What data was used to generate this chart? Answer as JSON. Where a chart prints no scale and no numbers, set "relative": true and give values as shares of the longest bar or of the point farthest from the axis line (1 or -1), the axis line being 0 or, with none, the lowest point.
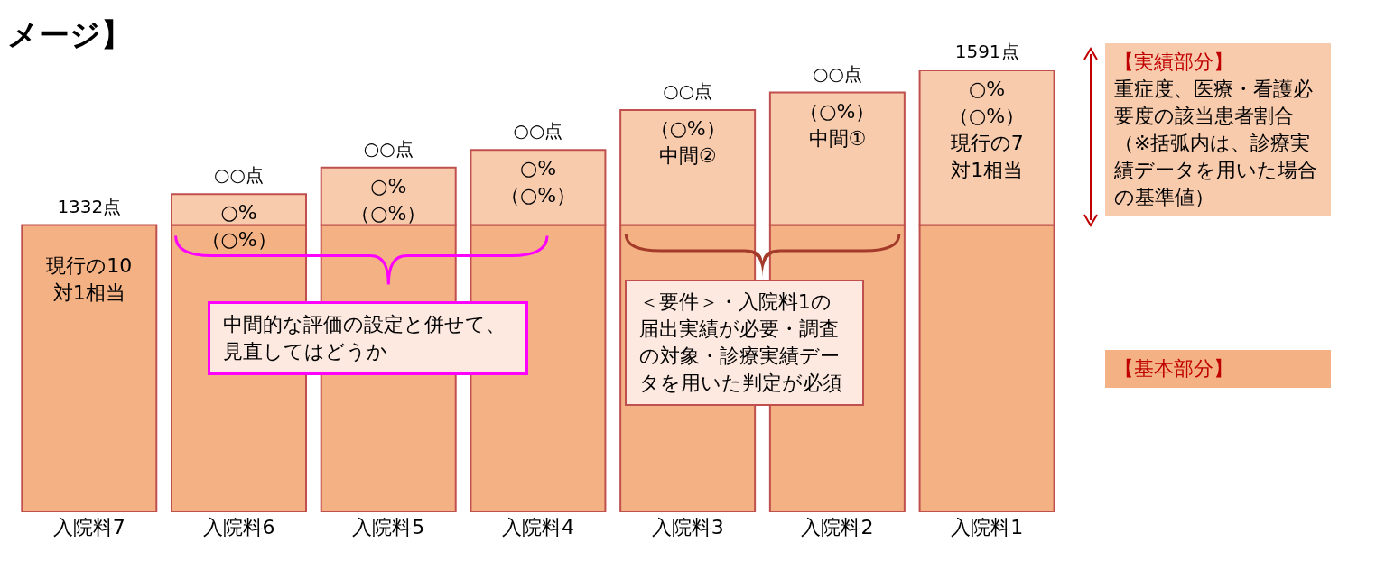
{
  "chart_data": {
    "type": "bar",
    "title": "メージ】",
    "relative": true,
    "stacked": true,
    "legend": "right",
    "categories": [
      "入院料7",
      "入院料6",
      "入院料5",
      "入院料4",
      "入院料3",
      "入院料2",
      "入院料1"
    ],
    "series": [
      {
        "name": "【基本部分】",
        "color": "#f4b183",
        "values": [
          0.65,
          0.65,
          0.65,
          0.65,
          0.65,
          0.65,
          0.65
        ]
      },
      {
        "name": "【実績部分】",
        "color": "#f8cbad",
        "values": [
          0,
          0.07,
          0.13,
          0.17,
          0.26,
          0.3,
          0.35
        ]
      }
    ],
    "annotations": [
      "中間的な評価の設定と併せて、見直してはどうか",
      "＜要件＞・入院料1の届出実績が必要・調査の対象・診療実績データを用いた判定が必須",
      "重症度、医療・看護必要度の該当患者割合（※括弧内は、診療実績データを用いた場合の基準値）",
      "現行の10対1相当",
      "○%（○%）",
      "○%（○%）",
      "○%（○%）",
      "（○%）中間②",
      "（○%）中間①",
      "○%（○%）現行の7対1相当",
      "1332点",
      "○○点",
      "○○点",
      "○○点",
      "○○点",
      "○○点",
      "1591点"
    ]
  }
}
